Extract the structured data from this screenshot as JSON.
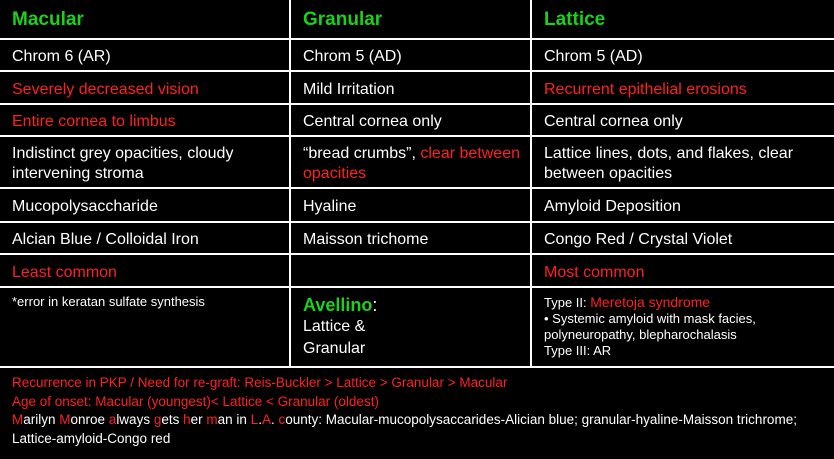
{
  "headers": [
    "Macular",
    "Granular",
    "Lattice"
  ],
  "rows": {
    "chrom": [
      "Chrom 6 (AR)",
      "Chrom 5 (AD)",
      "Chrom 5 (AD)"
    ],
    "symptom": [
      "Severely decreased vision",
      "Mild Irritation",
      "Recurrent epithelial erosions"
    ],
    "location": [
      "Entire cornea to limbus",
      "Central cornea only",
      "Central cornea only"
    ],
    "opacity": {
      "macular": "Indistinct grey opacities, cloudy intervening stroma",
      "granular_white": "“bread crumbs”,",
      "granular_red": "clear between opacities",
      "lattice": "Lattice lines, dots, and flakes, clear between opacities"
    },
    "deposit": [
      "Mucopolysaccharide",
      "Hyaline",
      "Amyloid Deposition"
    ],
    "stain": [
      "Alcian Blue / Colloidal Iron",
      "Maisson trichome",
      "Congo Red / Crystal Violet"
    ],
    "frequency": [
      "Least common",
      "",
      "Most common"
    ],
    "notes": {
      "macular": "*error in keratan sulfate synthesis",
      "avellino_title": "Avellino",
      "avellino_colon": ":",
      "avellino_line1": "Lattice &",
      "avellino_line2": "Granular",
      "type2_label": "Type II:",
      "type2_name": "Meretoja syndrome",
      "type2_detail": "• Systemic amyloid with mask facies, polyneuropathy, blepharochalasis",
      "type3": "Type III: AR"
    }
  },
  "footer": {
    "line1": "Recurrence in PKP / Need for re-graft: Reis-Buckler > Lattice > Granular > Macular",
    "line2": "Age of onset: Macular  (youngest)< Lattice < Granular (oldest)",
    "mnemonic": [
      {
        "text": "M",
        "red": true
      },
      {
        "text": "arilyn ",
        "red": false
      },
      {
        "text": "M",
        "red": true
      },
      {
        "text": "onroe ",
        "red": false
      },
      {
        "text": "a",
        "red": true
      },
      {
        "text": "lways ",
        "red": false
      },
      {
        "text": "g",
        "red": true
      },
      {
        "text": "ets ",
        "red": false
      },
      {
        "text": "h",
        "red": true
      },
      {
        "text": "er ",
        "red": false
      },
      {
        "text": "m",
        "red": true
      },
      {
        "text": "an in ",
        "red": false
      },
      {
        "text": "L",
        "red": true
      },
      {
        "text": ".",
        "red": false
      },
      {
        "text": "A",
        "red": true
      },
      {
        "text": ". ",
        "red": false
      },
      {
        "text": "c",
        "red": true
      },
      {
        "text": "ounty: Macular-mucopolysaccarides-Alician blue; granular-hyaline-Maisson trichrome; Lattice-amyloid-Congo red",
        "red": false
      }
    ]
  },
  "colors": {
    "header_green": "#1bd11b",
    "red": "#ff2020",
    "background": "#000000",
    "text": "#ffffff"
  }
}
